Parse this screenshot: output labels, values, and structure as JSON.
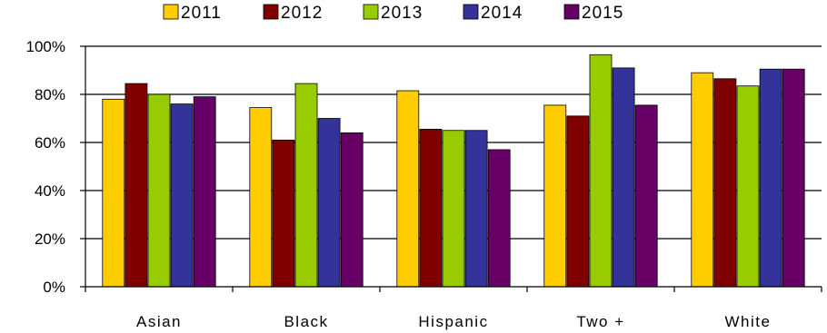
{
  "chart_data": {
    "type": "bar",
    "categories": [
      "Asian",
      "Black",
      "Hispanic",
      "Two +",
      "White"
    ],
    "series": [
      {
        "name": "2011",
        "color": "#FFCC00",
        "values": [
          78,
          74.5,
          81.5,
          75.5,
          89
        ]
      },
      {
        "name": "2012",
        "color": "#800000",
        "values": [
          84.5,
          61,
          65.5,
          71,
          86.5
        ]
      },
      {
        "name": "2013",
        "color": "#99CC00",
        "values": [
          80,
          84.5,
          65,
          96.5,
          83.5
        ]
      },
      {
        "name": "2014",
        "color": "#333399",
        "values": [
          76,
          70,
          65,
          91,
          90.5
        ]
      },
      {
        "name": "2015",
        "color": "#660066",
        "values": [
          79,
          64,
          57,
          75.5,
          90.5
        ]
      }
    ],
    "yticks": [
      "0%",
      "20%",
      "40%",
      "60%",
      "80%",
      "100%"
    ],
    "ylim": [
      0,
      100
    ],
    "grid": true,
    "legend": "top"
  }
}
